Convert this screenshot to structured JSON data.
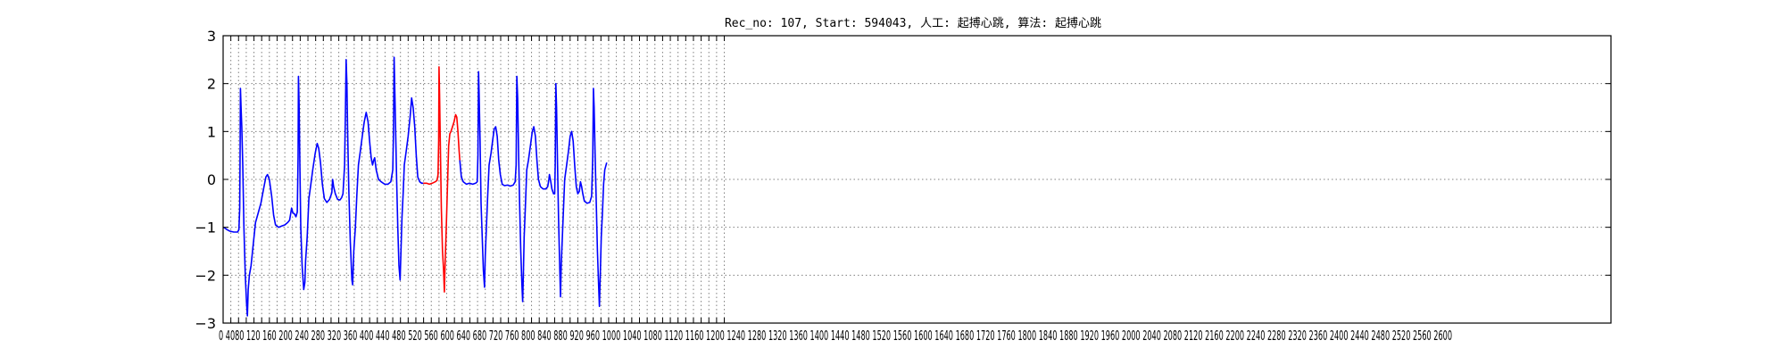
{
  "chart_data": {
    "type": "line",
    "title": "Rec_no: 107, Start: 594043, 人工: 起搏心跳, 算法: 起搏心跳",
    "xlim": [
      0,
      7200
    ],
    "ylim": [
      -3,
      3
    ],
    "grid": true,
    "y_ticks": [
      3,
      2,
      1,
      0,
      -1,
      -2,
      -3
    ],
    "y_tick_labels": [
      "3",
      "2",
      "1",
      "0",
      "−1",
      "−2",
      "−3"
    ],
    "x_ticks": [
      0,
      40,
      80,
      120,
      160,
      200,
      240,
      280,
      320,
      360,
      400,
      440,
      480,
      520,
      560,
      600,
      640,
      680,
      720,
      760,
      800,
      840,
      880,
      920,
      960,
      1000,
      1040,
      1080,
      1120,
      1160,
      1200,
      1240,
      1280,
      1320,
      1360,
      1400,
      1440,
      1480,
      1520,
      1560,
      1600,
      1640,
      1680,
      1720,
      1760,
      1800,
      1840,
      1880,
      1920,
      1960,
      2000,
      2040,
      2080,
      2120,
      2160,
      2200,
      2240,
      2280,
      2320,
      2360,
      2400,
      2440,
      2480,
      2520,
      2560,
      2600
    ],
    "x_tick_label_text": "0  4080 120 160 200 240 280 320 360 400 440 480 520 560 600 640 680 720 760 800 840 880 920 960 1000 1040 1080 1120 1160 1200 1240 1280 1320 1360 1400 1440 1480 1520 1560 1600 1640 1680 1720 1760 1800 1840 1880 1920 1960 2000 2040 2080 2120 2160 2200 2240 2280 2320 2360 2400 2440 2480 2520 2560 2600",
    "series": [
      {
        "color": "#0000ff",
        "points": [
          [
            0,
            -1.0
          ],
          [
            10,
            -1.02
          ],
          [
            20,
            -1.05
          ],
          [
            35,
            -1.08
          ],
          [
            55,
            -1.1
          ],
          [
            75,
            -1.1
          ],
          [
            82,
            -1.05
          ],
          [
            86,
            -0.6
          ],
          [
            88,
            0.5
          ],
          [
            90,
            1.9
          ],
          [
            93,
            1.5
          ],
          [
            97,
            1.1
          ],
          [
            102,
            0.3
          ],
          [
            108,
            -1.0
          ],
          [
            115,
            -2.0
          ],
          [
            122,
            -2.6
          ],
          [
            126,
            -2.85
          ],
          [
            130,
            -2.3
          ],
          [
            136,
            -2.0
          ],
          [
            145,
            -1.8
          ],
          [
            155,
            -1.4
          ],
          [
            168,
            -0.9
          ],
          [
            182,
            -0.7
          ],
          [
            196,
            -0.5
          ],
          [
            212,
            -0.15
          ],
          [
            222,
            0.05
          ],
          [
            230,
            0.1
          ],
          [
            240,
            0.0
          ],
          [
            252,
            -0.35
          ],
          [
            262,
            -0.75
          ],
          [
            272,
            -0.95
          ],
          [
            288,
            -1.0
          ],
          [
            305,
            -0.97
          ],
          [
            320,
            -0.95
          ],
          [
            335,
            -0.9
          ],
          [
            345,
            -0.85
          ],
          [
            355,
            -0.6
          ],
          [
            362,
            -0.7
          ],
          [
            370,
            -0.72
          ],
          [
            378,
            -0.78
          ],
          [
            385,
            -0.68
          ],
          [
            389,
            0.5
          ],
          [
            391,
            2.15
          ],
          [
            394,
            1.6
          ],
          [
            398,
            0.3
          ],
          [
            403,
            -1.0
          ],
          [
            410,
            -1.8
          ],
          [
            418,
            -2.3
          ],
          [
            424,
            -2.15
          ],
          [
            428,
            -1.7
          ],
          [
            436,
            -1.2
          ],
          [
            445,
            -0.4
          ],
          [
            455,
            -0.1
          ],
          [
            465,
            0.2
          ],
          [
            478,
            0.55
          ],
          [
            488,
            0.75
          ],
          [
            496,
            0.65
          ],
          [
            505,
            0.35
          ],
          [
            515,
            -0.1
          ],
          [
            525,
            -0.4
          ],
          [
            538,
            -0.48
          ],
          [
            552,
            -0.42
          ],
          [
            564,
            -0.28
          ],
          [
            568,
            0.0
          ],
          [
            573,
            -0.15
          ],
          [
            582,
            -0.3
          ],
          [
            594,
            -0.42
          ],
          [
            606,
            -0.43
          ],
          [
            615,
            -0.38
          ],
          [
            622,
            -0.3
          ],
          [
            630,
            0.3
          ],
          [
            635,
            1.5
          ],
          [
            638,
            2.5
          ],
          [
            642,
            2.0
          ],
          [
            646,
            1.0
          ],
          [
            652,
            -0.2
          ],
          [
            660,
            -1.3
          ],
          [
            668,
            -2.1
          ],
          [
            672,
            -2.2
          ],
          [
            678,
            -1.5
          ],
          [
            686,
            -1.0
          ],
          [
            694,
            -0.3
          ],
          [
            702,
            0.3
          ],
          [
            712,
            0.6
          ],
          [
            722,
            0.9
          ],
          [
            732,
            1.2
          ],
          [
            742,
            1.4
          ],
          [
            752,
            1.2
          ],
          [
            760,
            0.8
          ],
          [
            768,
            0.45
          ],
          [
            775,
            0.3
          ],
          [
            781,
            0.4
          ],
          [
            786,
            0.45
          ],
          [
            794,
            0.2
          ],
          [
            806,
            0.0
          ],
          [
            820,
            -0.05
          ],
          [
            838,
            -0.1
          ],
          [
            855,
            -0.1
          ],
          [
            870,
            -0.05
          ],
          [
            880,
            0.2
          ],
          [
            884,
            1.0
          ],
          [
            887,
            2.55
          ],
          [
            890,
            2.0
          ],
          [
            894,
            1.2
          ],
          [
            900,
            0.0
          ],
          [
            906,
            -1.0
          ],
          [
            912,
            -1.8
          ],
          [
            918,
            -2.1
          ],
          [
            922,
            -1.6
          ],
          [
            928,
            -0.8
          ],
          [
            934,
            -0.3
          ],
          [
            940,
            0.3
          ],
          [
            950,
            0.6
          ],
          [
            960,
            0.9
          ],
          [
            970,
            1.3
          ],
          [
            978,
            1.7
          ],
          [
            986,
            1.5
          ],
          [
            994,
            1.1
          ],
          [
            1002,
            0.5
          ],
          [
            1010,
            0.05
          ],
          [
            1020,
            -0.05
          ],
          [
            1030,
            -0.08
          ],
          [
            1038,
            -0.08
          ]
        ]
      },
      {
        "color": "#ff0000",
        "points": [
          [
            1038,
            -0.08
          ],
          [
            1055,
            -0.08
          ],
          [
            1070,
            -0.1
          ],
          [
            1085,
            -0.08
          ],
          [
            1100,
            -0.05
          ],
          [
            1110,
            -0.02
          ],
          [
            1115,
            0.1
          ],
          [
            1118,
            0.8
          ],
          [
            1120,
            2.35
          ],
          [
            1123,
            1.8
          ],
          [
            1127,
            0.7
          ],
          [
            1132,
            -0.6
          ],
          [
            1138,
            -1.5
          ],
          [
            1143,
            -1.85
          ],
          [
            1148,
            -2.35
          ],
          [
            1152,
            -1.7
          ],
          [
            1156,
            -1.2
          ],
          [
            1160,
            -0.7
          ],
          [
            1165,
            0.0
          ],
          [
            1170,
            0.7
          ],
          [
            1176,
            0.95
          ],
          [
            1182,
            1.0
          ],
          [
            1190,
            1.1
          ],
          [
            1198,
            1.2
          ],
          [
            1206,
            1.35
          ],
          [
            1212,
            1.3
          ],
          [
            1218,
            1.0
          ],
          [
            1224,
            0.6
          ],
          [
            1228,
            0.4
          ]
        ]
      },
      {
        "color": "#0000ff",
        "points": [
          [
            1228,
            0.4
          ],
          [
            1236,
            0.05
          ],
          [
            1246,
            -0.05
          ],
          [
            1262,
            -0.1
          ],
          [
            1278,
            -0.08
          ],
          [
            1295,
            -0.1
          ],
          [
            1310,
            -0.08
          ],
          [
            1318,
            -0.05
          ],
          [
            1322,
            0.5
          ],
          [
            1325,
            2.25
          ],
          [
            1328,
            1.8
          ],
          [
            1333,
            0.8
          ],
          [
            1338,
            -0.5
          ],
          [
            1344,
            -1.2
          ],
          [
            1350,
            -1.9
          ],
          [
            1356,
            -2.25
          ],
          [
            1360,
            -1.6
          ],
          [
            1366,
            -1.0
          ],
          [
            1372,
            -0.4
          ],
          [
            1380,
            0.3
          ],
          [
            1390,
            0.55
          ],
          [
            1398,
            0.8
          ],
          [
            1406,
            1.05
          ],
          [
            1414,
            1.1
          ],
          [
            1422,
            0.9
          ],
          [
            1430,
            0.4
          ],
          [
            1438,
            0.1
          ],
          [
            1448,
            -0.1
          ],
          [
            1460,
            -0.13
          ],
          [
            1475,
            -0.12
          ],
          [
            1490,
            -0.14
          ],
          [
            1505,
            -0.12
          ],
          [
            1515,
            -0.05
          ],
          [
            1520,
            0.3
          ],
          [
            1524,
            2.15
          ],
          [
            1528,
            1.7
          ],
          [
            1533,
            0.5
          ],
          [
            1538,
            -0.5
          ],
          [
            1544,
            -1.5
          ],
          [
            1550,
            -2.2
          ],
          [
            1554,
            -2.55
          ],
          [
            1558,
            -1.9
          ],
          [
            1562,
            -1.2
          ],
          [
            1568,
            -0.6
          ],
          [
            1575,
            0.2
          ],
          [
            1584,
            0.4
          ],
          [
            1594,
            0.7
          ],
          [
            1604,
            1.0
          ],
          [
            1612,
            1.1
          ],
          [
            1620,
            0.9
          ],
          [
            1628,
            0.4
          ],
          [
            1636,
            0.0
          ],
          [
            1646,
            -0.15
          ],
          [
            1660,
            -0.2
          ],
          [
            1674,
            -0.2
          ],
          [
            1684,
            -0.15
          ],
          [
            1690,
            0.0
          ],
          [
            1693,
            0.1
          ],
          [
            1698,
            0.0
          ],
          [
            1706,
            -0.2
          ],
          [
            1714,
            -0.3
          ],
          [
            1720,
            -0.3
          ],
          [
            1723,
            0.3
          ],
          [
            1726,
            2.0
          ],
          [
            1730,
            1.5
          ],
          [
            1735,
            0.3
          ],
          [
            1740,
            -0.8
          ],
          [
            1746,
            -1.8
          ],
          [
            1750,
            -2.45
          ],
          [
            1754,
            -1.8
          ],
          [
            1760,
            -1.2
          ],
          [
            1766,
            -0.6
          ],
          [
            1772,
            0.0
          ],
          [
            1782,
            0.3
          ],
          [
            1792,
            0.6
          ],
          [
            1800,
            0.9
          ],
          [
            1808,
            1.0
          ],
          [
            1816,
            0.8
          ],
          [
            1824,
            0.3
          ],
          [
            1832,
            -0.15
          ],
          [
            1840,
            -0.3
          ],
          [
            1848,
            -0.25
          ],
          [
            1854,
            -0.05
          ],
          [
            1860,
            -0.15
          ],
          [
            1866,
            -0.3
          ],
          [
            1874,
            -0.45
          ],
          [
            1888,
            -0.5
          ],
          [
            1902,
            -0.48
          ],
          [
            1912,
            -0.35
          ],
          [
            1918,
            0.5
          ],
          [
            1921,
            1.9
          ],
          [
            1925,
            1.5
          ],
          [
            1930,
            0.5
          ],
          [
            1936,
            -0.5
          ],
          [
            1942,
            -1.5
          ],
          [
            1948,
            -2.2
          ],
          [
            1952,
            -2.65
          ],
          [
            1957,
            -1.9
          ],
          [
            1962,
            -1.2
          ],
          [
            1968,
            -0.7
          ],
          [
            1974,
            -0.1
          ],
          [
            1980,
            0.2
          ],
          [
            1990,
            0.35
          ]
        ]
      }
    ]
  }
}
